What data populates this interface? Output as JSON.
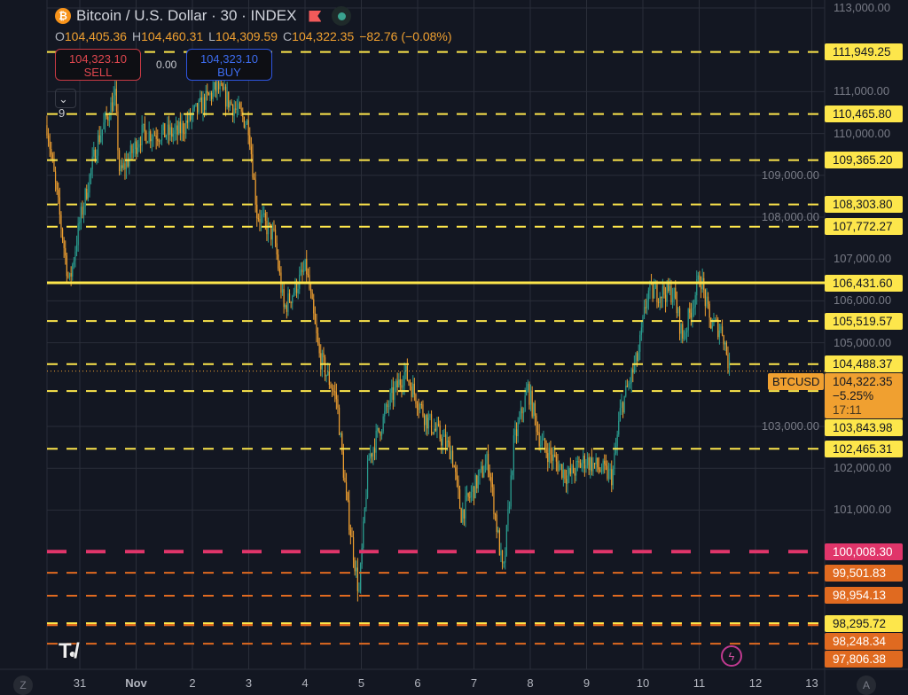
{
  "header": {
    "title": "Bitcoin / U.S. Dollar · 30 · INDEX",
    "coin_icon": "bitcoin-icon",
    "open_label": "O",
    "open": "104,405.36",
    "high_label": "H",
    "high": "104,460.31",
    "low_label": "L",
    "low": "104,309.59",
    "close_label": "C",
    "close": "104,322.35",
    "change": "−82.76 (−0.08%)"
  },
  "trade": {
    "sell_price": "104,323.10",
    "sell_label": "SELL",
    "spread": "0.00",
    "buy_price": "104,323.10",
    "buy_label": "BUY"
  },
  "indicators": {
    "label": "9"
  },
  "current": {
    "symbol": "BTCUSD",
    "price": "104,322.35",
    "change": "−5.25%",
    "countdown": "17:11",
    "price_value": 104322.35
  },
  "colors": {
    "bg": "#131722",
    "up": "#2a9d8f",
    "down": "#f0a030",
    "yellow": "#fde64b",
    "pink": "#e0356a",
    "orange": "#e06a20"
  },
  "price_lines": [
    {
      "price": 111949.25,
      "label": "111,949.25",
      "style": "dashed-yellow"
    },
    {
      "price": 110465.8,
      "label": "110,465.80",
      "style": "dashed-yellow"
    },
    {
      "price": 109365.2,
      "label": "109,365.20",
      "style": "dashed-yellow"
    },
    {
      "price": 108303.8,
      "label": "108,303.80",
      "style": "dashed-yellow"
    },
    {
      "price": 107772.27,
      "label": "107,772.27",
      "style": "dashed-yellow"
    },
    {
      "price": 106431.6,
      "label": "106,431.60",
      "style": "solid-yellow"
    },
    {
      "price": 105519.57,
      "label": "105,519.57",
      "style": "dashed-yellow"
    },
    {
      "price": 104488.37,
      "label": "104,488.37",
      "style": "dashed-yellow"
    },
    {
      "price": 103843.98,
      "label": "103,843.98",
      "style": "dashed-yellow"
    },
    {
      "price": 102465.31,
      "label": "102,465.31",
      "style": "dashed-yellow"
    },
    {
      "price": 100008.3,
      "label": "100,008.30",
      "style": "dashed-pink"
    },
    {
      "price": 99501.83,
      "label": "99,501.83",
      "style": "dashed-orange"
    },
    {
      "price": 98954.13,
      "label": "98,954.13",
      "style": "dashed-orange"
    },
    {
      "price": 98295.72,
      "label": "98,295.72",
      "style": "dashed-yellow-orange"
    },
    {
      "price": 98248.34,
      "label": "98,248.34",
      "style": "dashed-orange"
    },
    {
      "price": 97806.38,
      "label": "97,806.38",
      "style": "dashed-orange"
    }
  ],
  "chart_data": {
    "type": "candlestick",
    "y_range": [
      97400,
      113000
    ],
    "y_ticks": [
      {
        "v": 113000,
        "l": "113,000.00"
      },
      {
        "v": 111000,
        "l": "111,000.00"
      },
      {
        "v": 110000,
        "l": "110,000.00"
      },
      {
        "v": 109000,
        "l": "109,000.00"
      },
      {
        "v": 108000,
        "l": "108,000.00"
      },
      {
        "v": 107000,
        "l": "107,000.00"
      },
      {
        "v": 106000,
        "l": "106,000.00"
      },
      {
        "v": 105000,
        "l": "105,000.00"
      },
      {
        "v": 103000,
        "l": "103,000.00"
      },
      {
        "v": 102000,
        "l": "102,000.00"
      },
      {
        "v": 101000,
        "l": "101,000.00"
      }
    ],
    "x_ticks": [
      "31",
      "Nov",
      "2",
      "3",
      "4",
      "5",
      "6",
      "7",
      "8",
      "9",
      "10",
      "11",
      "12",
      "13"
    ],
    "price_path": [
      {
        "t": "Oct 30 10:00",
        "p": 110200
      },
      {
        "t": "Oct 30 19:30",
        "p": 106400
      },
      {
        "t": "Oct 31 00:00",
        "p": 107900
      },
      {
        "t": "Oct 31 07:30",
        "p": 109800
      },
      {
        "t": "Oct 31 15:00",
        "p": 110900
      },
      {
        "t": "Oct 31 17:00",
        "p": 109000
      },
      {
        "t": "Nov 1 02:30",
        "p": 110000
      },
      {
        "t": "Nov 1 17:30",
        "p": 110000
      },
      {
        "t": "Nov 2 10:30",
        "p": 111100
      },
      {
        "t": "Nov 3 00:00",
        "p": 110200
      },
      {
        "t": "Nov 3 03:30",
        "p": 108100
      },
      {
        "t": "Nov 3 11:00",
        "p": 107500
      },
      {
        "t": "Nov 3 15:00",
        "p": 105800
      },
      {
        "t": "Nov 4 00:30",
        "p": 106800
      },
      {
        "t": "Nov 4 06:00",
        "p": 104700
      },
      {
        "t": "Nov 4 13:30",
        "p": 103650
      },
      {
        "t": "Nov 4 17:30",
        "p": 101300
      },
      {
        "t": "Nov 4 23:00",
        "p": 99000
      },
      {
        "t": "Nov 5 03:00",
        "p": 102200
      },
      {
        "t": "Nov 5 12:30",
        "p": 103650
      },
      {
        "t": "Nov 5 18:30",
        "p": 104300
      },
      {
        "t": "Nov 6 03:30",
        "p": 103200
      },
      {
        "t": "Nov 6 14:30",
        "p": 102400
      },
      {
        "t": "Nov 6 18:30",
        "p": 100900
      },
      {
        "t": "Nov 7 06:00",
        "p": 102200
      },
      {
        "t": "Nov 7 12:30",
        "p": 99400
      },
      {
        "t": "Nov 7 17:00",
        "p": 102600
      },
      {
        "t": "Nov 7 23:00",
        "p": 103900
      },
      {
        "t": "Nov 8 04:30",
        "p": 102600
      },
      {
        "t": "Nov 8 16:00",
        "p": 101800
      },
      {
        "t": "Nov 8 23:30",
        "p": 102200
      },
      {
        "t": "Nov 9 11:00",
        "p": 101800
      },
      {
        "t": "Nov 9 14:30",
        "p": 103400
      },
      {
        "t": "Nov 9 22:00",
        "p": 104700
      },
      {
        "t": "Nov 10 02:00",
        "p": 106200
      },
      {
        "t": "Nov 10 13:00",
        "p": 106200
      },
      {
        "t": "Nov 10 17:00",
        "p": 105100
      },
      {
        "t": "Nov 11 00:30",
        "p": 106600
      },
      {
        "t": "Nov 11 04:30",
        "p": 105500
      },
      {
        "t": "Nov 11 10:00",
        "p": 105300
      },
      {
        "t": "Nov 11 13:00",
        "p": 104322.35
      }
    ]
  },
  "bottom": {
    "left_button": "Z",
    "right_button": "A",
    "brand": "TV"
  }
}
